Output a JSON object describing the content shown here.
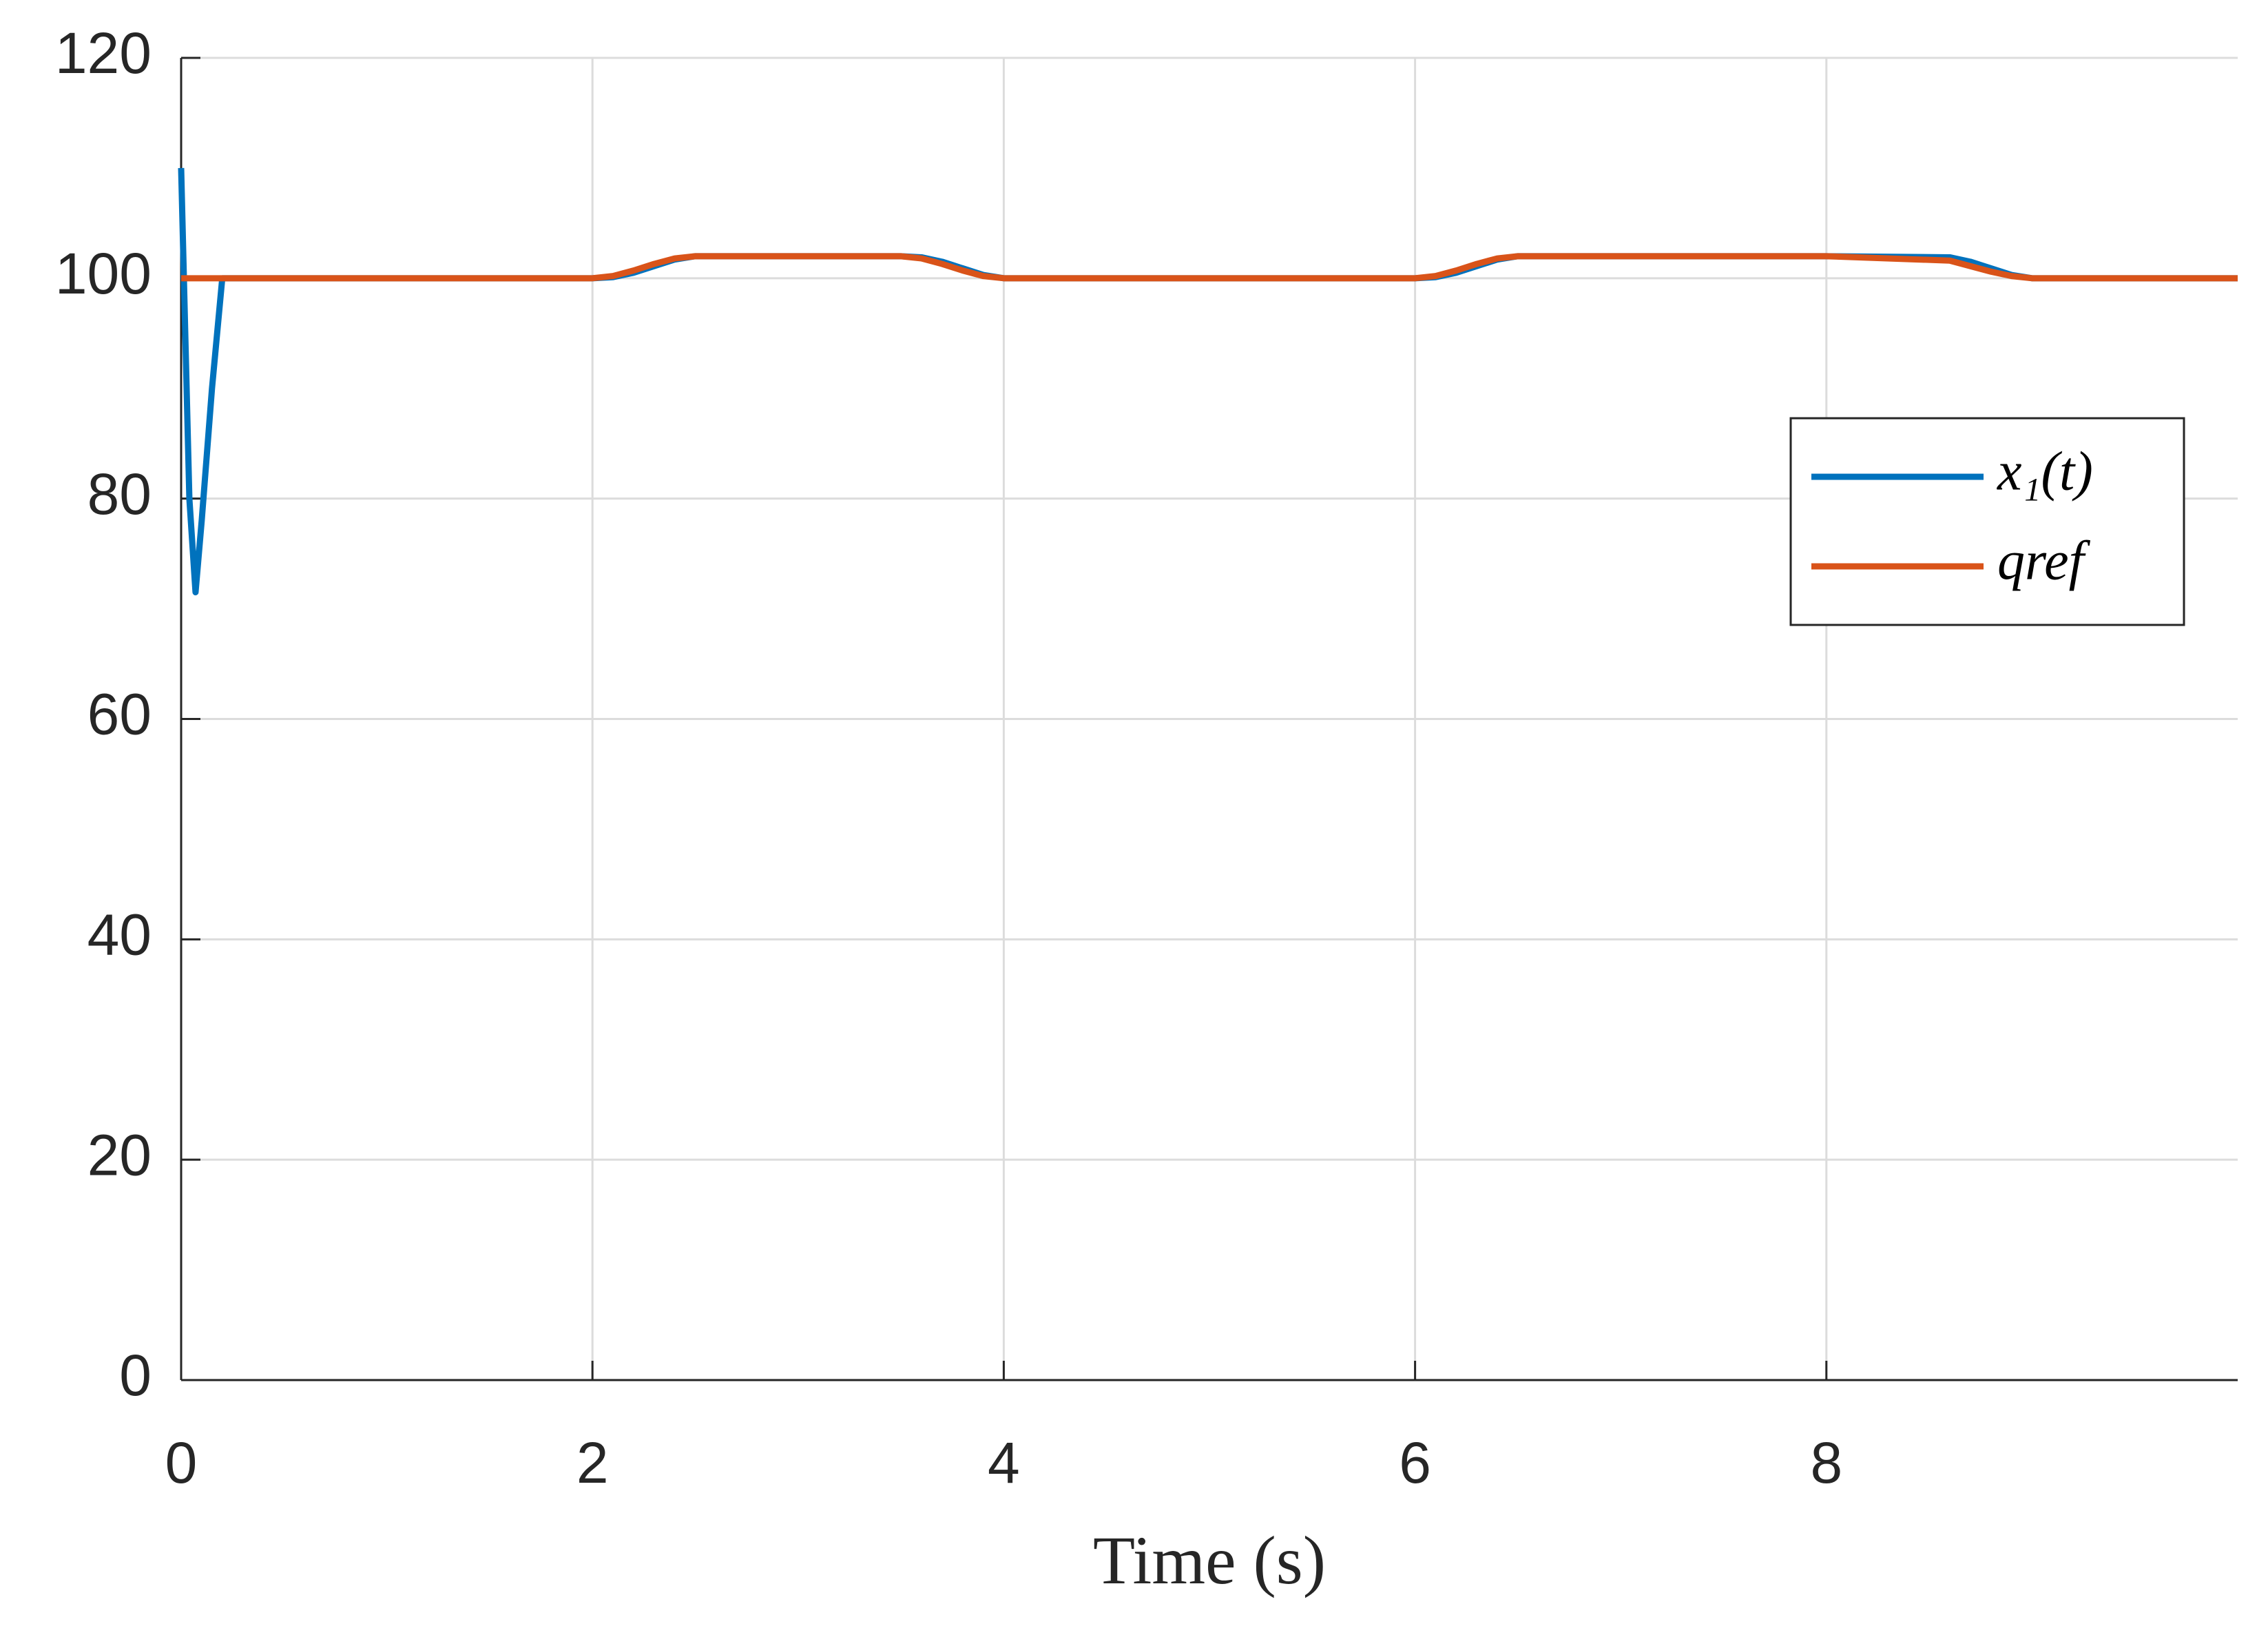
{
  "chart_data": {
    "type": "line",
    "xlabel": "Time (s)",
    "x": [
      0,
      0.02,
      0.04,
      0.07,
      0.1,
      0.15,
      0.2,
      0.5,
      1,
      1.5,
      2,
      2.1,
      2.2,
      2.3,
      2.4,
      2.5,
      3,
      3.5,
      3.6,
      3.7,
      3.8,
      3.9,
      4,
      5,
      6,
      6.1,
      6.2,
      6.3,
      6.4,
      6.5,
      7,
      8,
      8.6,
      8.7,
      8.8,
      8.9,
      9,
      9.5,
      10
    ],
    "series": [
      {
        "name": "x₁(t)",
        "color": "#0072bd",
        "values": [
          110,
          95,
          80,
          71.5,
          78,
          90,
          100,
          100,
          100,
          100,
          100,
          100.1,
          100.5,
          101.1,
          101.7,
          102,
          102,
          102,
          101.9,
          101.5,
          100.9,
          100.3,
          100,
          100,
          100,
          100.1,
          100.5,
          101.1,
          101.7,
          102,
          102,
          102,
          101.9,
          101.5,
          100.9,
          100.3,
          100,
          100,
          100
        ]
      },
      {
        "name": "qref",
        "color": "#d95319",
        "values": [
          100,
          100,
          100,
          100,
          100,
          100,
          100,
          100,
          100,
          100,
          100,
          100.2,
          100.7,
          101.3,
          101.8,
          102,
          102,
          102,
          101.8,
          101.3,
          100.7,
          100.2,
          100,
          100,
          100,
          100.2,
          100.7,
          101.3,
          101.8,
          102,
          102,
          102,
          101.6,
          101.1,
          100.6,
          100.2,
          100,
          100,
          100
        ]
      }
    ],
    "xlim": [
      0,
      10
    ],
    "xticks": [
      0,
      2,
      4,
      6,
      8
    ],
    "ylim": [
      0,
      120
    ],
    "yticks": [
      0,
      20,
      40,
      60,
      80,
      100,
      120
    ],
    "grid": true,
    "legend": "east"
  }
}
